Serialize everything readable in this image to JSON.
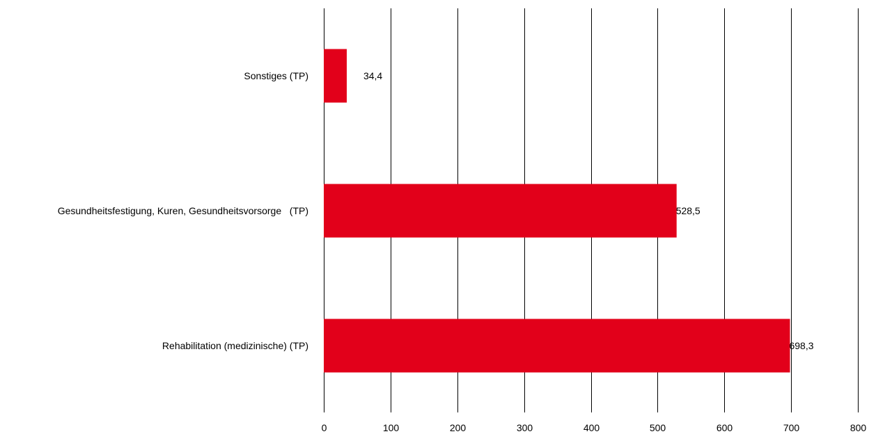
{
  "chart_data": {
    "type": "bar",
    "orientation": "horizontal",
    "categories": [
      "Sonstiges (TP)",
      "Gesundheitsfestigung, Kuren, Gesundheitsvorsorge   (TP)",
      "Rehabilitation (medizinische) (TP)"
    ],
    "values": [
      34.4,
      528.5,
      698.3
    ],
    "value_labels": [
      "34,4",
      "528,5",
      "698,3"
    ],
    "title": "",
    "xlabel": "",
    "ylabel": "",
    "xlim": [
      0,
      800
    ],
    "xticks": [
      0,
      100,
      200,
      300,
      400,
      500,
      600,
      700,
      800
    ],
    "grid": "vertical",
    "legend": "none",
    "bar_color": "#e2001a"
  }
}
